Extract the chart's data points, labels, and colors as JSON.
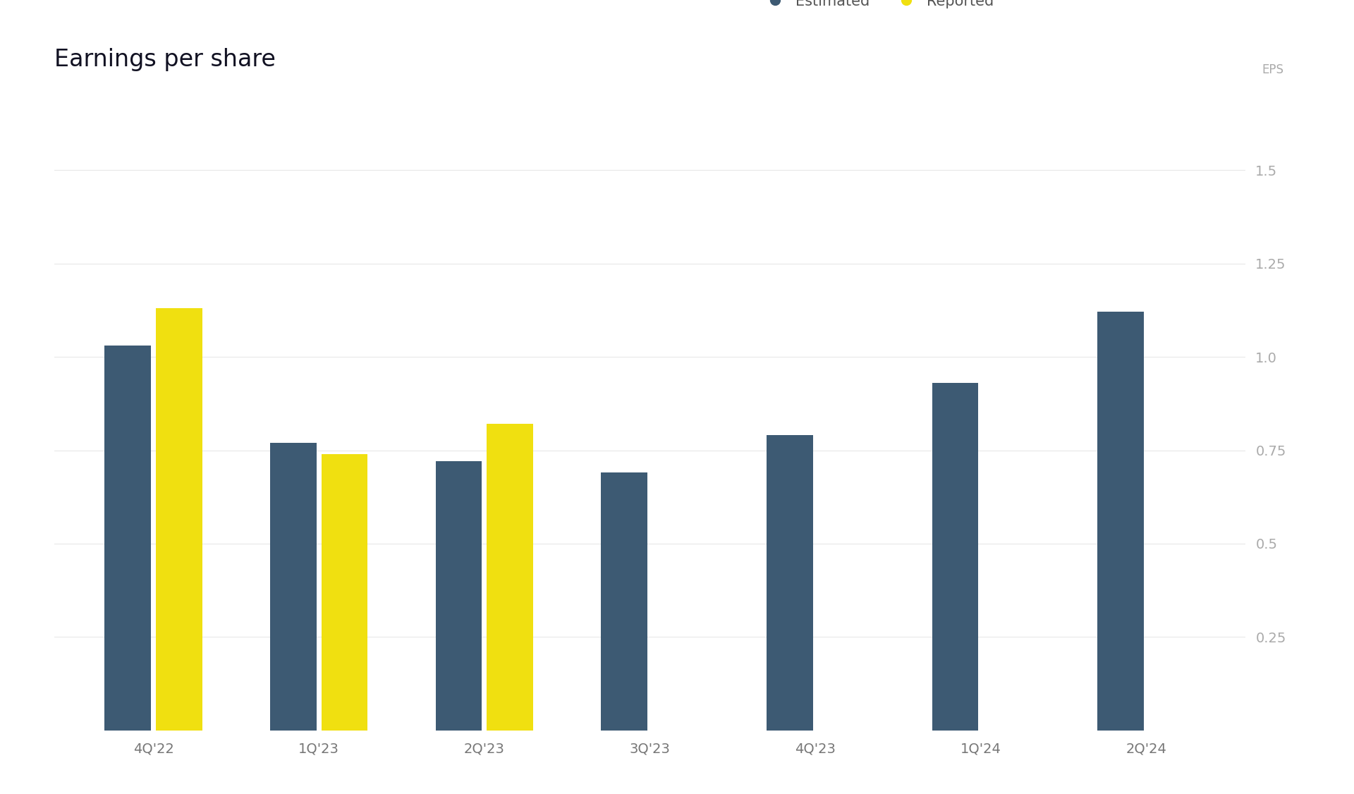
{
  "title": "Earnings per share",
  "ylabel": "EPS",
  "categories": [
    "4Q'22",
    "1Q'23",
    "2Q'23",
    "3Q'23",
    "4Q'23",
    "1Q'24",
    "2Q'24"
  ],
  "estimated": [
    1.03,
    0.77,
    0.72,
    0.69,
    0.79,
    0.93,
    1.12
  ],
  "reported": [
    1.13,
    0.74,
    0.82,
    null,
    null,
    null,
    null
  ],
  "estimated_color": "#3d5a73",
  "reported_color": "#f0e010",
  "background_color": "#ffffff",
  "grid_color": "#e8e8e8",
  "text_color": "#111122",
  "axis_label_color": "#aaaaaa",
  "ylim": [
    0,
    1.7
  ],
  "yticks": [
    0.25,
    0.5,
    0.75,
    1.0,
    1.25,
    1.5
  ],
  "bar_width": 0.28,
  "bar_gap": 0.03,
  "title_fontsize": 24,
  "legend_fontsize": 15,
  "tick_fontsize": 14,
  "ylabel_fontsize": 12
}
